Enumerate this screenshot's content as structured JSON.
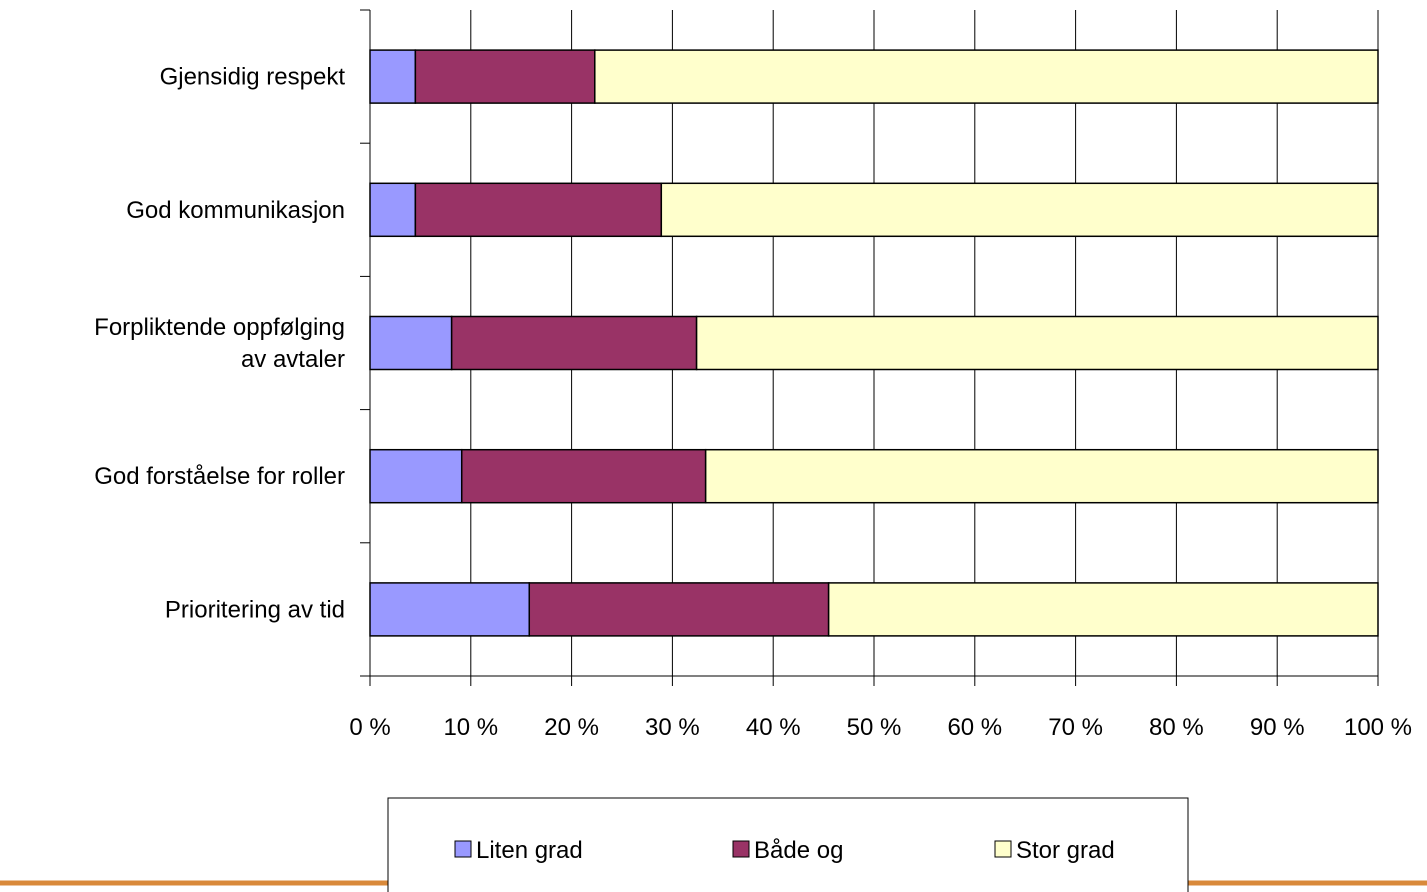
{
  "chart_data": {
    "type": "stacked_bar_horizontal",
    "categories": [
      "Gjensidig respekt",
      "God kommunikasjon",
      "Forpliktende oppfølging\nav avtaler",
      "God forståelse for roller",
      "Prioritering av tid"
    ],
    "series": [
      {
        "name": "Liten grad",
        "color": "#9999ff",
        "values": [
          4.5,
          4.5,
          8.1,
          9.1,
          15.8
        ]
      },
      {
        "name": "Både og",
        "color": "#993366",
        "values": [
          17.8,
          24.4,
          24.3,
          24.2,
          29.7
        ]
      },
      {
        "name": "Stor grad",
        "color": "#ffffcc",
        "values": [
          77.7,
          71.1,
          67.6,
          66.7,
          54.5
        ]
      }
    ],
    "xlim": [
      0,
      100
    ],
    "xticks": [
      {
        "value": 0,
        "label": "0 %"
      },
      {
        "value": 10,
        "label": "10 %"
      },
      {
        "value": 20,
        "label": "20 %"
      },
      {
        "value": 30,
        "label": "30 %"
      },
      {
        "value": 40,
        "label": "40 %"
      },
      {
        "value": 50,
        "label": "50 %"
      },
      {
        "value": 60,
        "label": "60 %"
      },
      {
        "value": 70,
        "label": "70 %"
      },
      {
        "value": 80,
        "label": "80 %"
      },
      {
        "value": 90,
        "label": "90 %"
      },
      {
        "value": 100,
        "label": "100 %"
      }
    ],
    "grid": true,
    "legend": "bottom"
  }
}
